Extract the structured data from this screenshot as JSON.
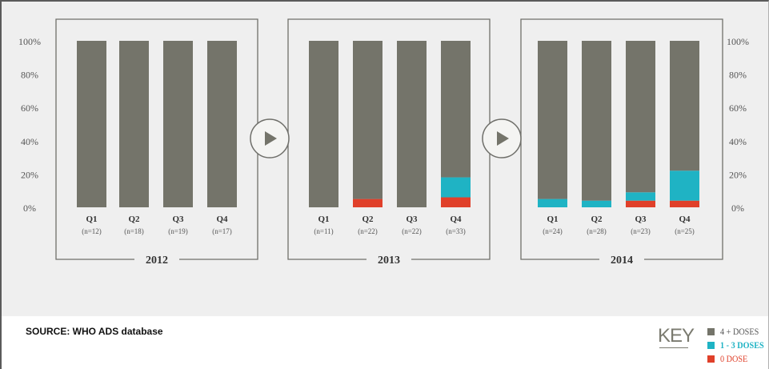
{
  "chart_data": {
    "type": "bar",
    "stacked": true,
    "percent_stacked": true,
    "ylim": [
      0,
      100
    ],
    "y_ticks": [
      "0%",
      "20%",
      "40%",
      "60%",
      "80%",
      "100%"
    ],
    "grid": false,
    "legend_position": "bottom-right",
    "series_order": [
      "0 DOSE",
      "1 - 3 DOSES",
      "4 + DOSES"
    ],
    "colors": {
      "4 + DOSES": "#74746a",
      "1 - 3 DOSES": "#1fb3c4",
      "0 DOSE": "#e0402a"
    },
    "panels": [
      {
        "title": "2012",
        "categories": [
          "Q1",
          "Q2",
          "Q3",
          "Q4"
        ],
        "n_labels": [
          "(n=12)",
          "(n=18)",
          "(n=19)",
          "(n=17)"
        ],
        "series": [
          {
            "name": "0 DOSE",
            "values": [
              0,
              0,
              0,
              0
            ]
          },
          {
            "name": "1 - 3 DOSES",
            "values": [
              0,
              0,
              0,
              0
            ]
          },
          {
            "name": "4 + DOSES",
            "values": [
              100,
              100,
              100,
              100
            ]
          }
        ]
      },
      {
        "title": "2013",
        "categories": [
          "Q1",
          "Q2",
          "Q3",
          "Q4"
        ],
        "n_labels": [
          "(n=11)",
          "(n=22)",
          "(n=22)",
          "(n=33)"
        ],
        "series": [
          {
            "name": "0 DOSE",
            "values": [
              0,
              5,
              0,
              6
            ]
          },
          {
            "name": "1 - 3 DOSES",
            "values": [
              0,
              0,
              0,
              12
            ]
          },
          {
            "name": "4 + DOSES",
            "values": [
              100,
              95,
              100,
              82
            ]
          }
        ]
      },
      {
        "title": "2014",
        "categories": [
          "Q1",
          "Q2",
          "Q3",
          "Q4"
        ],
        "n_labels": [
          "(n=24)",
          "(n=28)",
          "(n=23)",
          "(n=25)"
        ],
        "series": [
          {
            "name": "0 DOSE",
            "values": [
              0,
              0,
              4,
              4
            ]
          },
          {
            "name": "1 - 3 DOSES",
            "values": [
              5,
              4,
              5,
              18
            ]
          },
          {
            "name": "4 + DOSES",
            "values": [
              95,
              96,
              91,
              78
            ]
          }
        ]
      }
    ]
  },
  "source_note": "SOURCE: WHO ADS database",
  "key": {
    "title": "KEY",
    "items": [
      {
        "label": "4 + DOSES",
        "color": "#74746a"
      },
      {
        "label": "1 - 3 DOSES",
        "color": "#1fb3c4"
      },
      {
        "label": "0 DOSE",
        "color": "#e0402a"
      }
    ]
  },
  "icons": {
    "arrow": "play-arrow-icon"
  }
}
